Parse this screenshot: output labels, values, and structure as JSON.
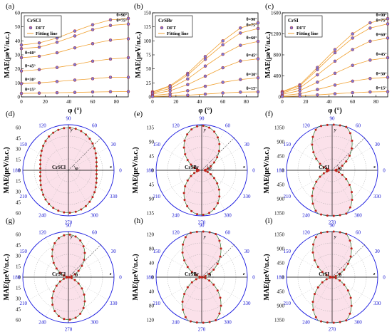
{
  "chart_data": [
    {
      "id": "a",
      "panel_label": "(a)",
      "type": "scatter",
      "material": "CrSCl",
      "xlabel": "φ (°)",
      "ylabel": "MAE(μeV/u.c.)",
      "xlim": [
        0,
        90
      ],
      "ylim": [
        0,
        60
      ],
      "xticks": [
        "0",
        "20",
        "40",
        "60",
        "80"
      ],
      "yticks": [
        "0",
        "10",
        "20",
        "30",
        "40",
        "50",
        "60"
      ],
      "legend": {
        "placement": "top-left",
        "entries": [
          "DFT",
          "Fitting line"
        ]
      },
      "x": [
        0,
        15,
        30,
        45,
        60,
        75,
        90
      ],
      "series": [
        {
          "name": "θ=90°",
          "values": [
            37,
            38.5,
            42,
            47,
            51.5,
            55,
            56
          ]
        },
        {
          "name": "θ=75°",
          "values": [
            34.5,
            35.5,
            39,
            43.5,
            48,
            51,
            52
          ]
        },
        {
          "name": "θ=60°",
          "values": [
            28,
            29,
            31.5,
            35,
            38,
            40.5,
            41.5
          ]
        },
        {
          "name": "θ=45°",
          "values": [
            18.5,
            19.5,
            21,
            23,
            25.5,
            27,
            28
          ]
        },
        {
          "name": "θ=30°",
          "values": [
            9.5,
            10,
            11,
            12,
            13,
            14,
            14
          ]
        },
        {
          "name": "θ=15°",
          "values": [
            2.5,
            2.7,
            3,
            3.2,
            3.5,
            3.7,
            3.8
          ]
        }
      ]
    },
    {
      "id": "b",
      "panel_label": "(b)",
      "type": "scatter",
      "material": "CrSBr",
      "xlabel": "φ (°)",
      "ylabel": "MAE(μeV/u.c.)",
      "xlim": [
        0,
        90
      ],
      "ylim": [
        0,
        150
      ],
      "xticks": [
        "0",
        "20",
        "40",
        "60",
        "80"
      ],
      "yticks": [
        "0",
        "25",
        "50",
        "75",
        "100",
        "125",
        "150"
      ],
      "legend": {
        "placement": "top-left",
        "entries": [
          "DFT",
          "Fitting line"
        ]
      },
      "x": [
        0,
        15,
        30,
        45,
        60,
        75,
        90
      ],
      "series": [
        {
          "name": "θ=90°",
          "values": [
            9,
            20,
            42,
            72,
            100,
            123,
            132
          ]
        },
        {
          "name": "θ=75°",
          "values": [
            8.5,
            18.5,
            39,
            67,
            93,
            114,
            122
          ]
        },
        {
          "name": "θ=60°",
          "values": [
            7,
            15,
            32,
            55,
            76,
            92,
            99
          ]
        },
        {
          "name": "θ=45°",
          "values": [
            5,
            11,
            22,
            37,
            52,
            64,
            68
          ]
        },
        {
          "name": "θ=30°",
          "values": [
            2.5,
            5.5,
            11,
            19,
            26,
            31,
            34
          ]
        },
        {
          "name": "θ=15°",
          "values": [
            0.7,
            1.5,
            3,
            5,
            7,
            8.5,
            9
          ]
        }
      ]
    },
    {
      "id": "c",
      "panel_label": "(c)",
      "type": "scatter",
      "material": "CrSI",
      "xlabel": "φ (°)",
      "ylabel": "MAE(μeV/u.c.)",
      "xlim": [
        0,
        90
      ],
      "ylim": [
        0,
        1600
      ],
      "xticks": [
        "0",
        "20",
        "40",
        "60",
        "80"
      ],
      "yticks": [
        "0",
        "400",
        "800",
        "1200",
        "1600"
      ],
      "legend": {
        "placement": "top-left",
        "entries": [
          "DFT",
          "Fitting line"
        ]
      },
      "x": [
        0,
        15,
        30,
        45,
        60,
        75,
        90
      ],
      "series": [
        {
          "name": "θ=90°",
          "values": [
            100,
            230,
            560,
            900,
            1200,
            1410,
            1490
          ]
        },
        {
          "name": "θ=75°",
          "values": [
            90,
            210,
            520,
            840,
            1120,
            1310,
            1390
          ]
        },
        {
          "name": "θ=60°",
          "values": [
            75,
            170,
            420,
            680,
            900,
            1060,
            1120
          ]
        },
        {
          "name": "θ=45°",
          "values": [
            50,
            120,
            280,
            450,
            600,
            700,
            745
          ]
        },
        {
          "name": "θ=30°",
          "values": [
            25,
            60,
            140,
            225,
            300,
            350,
            372
          ]
        },
        {
          "name": "θ=15°",
          "values": [
            7,
            16,
            38,
            60,
            80,
            94,
            100
          ]
        }
      ]
    },
    {
      "id": "d",
      "panel_label": "(d)",
      "type": "polar",
      "material": "CrSCl",
      "plane": "xy",
      "ylabel": "MAE(μeV/u.c.)",
      "rmax": 60,
      "radial_ticks": [
        "60",
        "45",
        "30",
        "15",
        "0",
        "15",
        "30",
        "45",
        "60"
      ],
      "angle_ticks": [
        "0",
        "30",
        "60",
        "90",
        "120",
        "150",
        "180",
        "210",
        "240",
        "270",
        "300",
        "330"
      ],
      "axis_labels": [
        "y",
        "x"
      ],
      "angle_label": "φ",
      "min_value": 37,
      "max_value": 56
    },
    {
      "id": "e",
      "panel_label": "(e)",
      "type": "polar",
      "material": "CrSBr",
      "plane": "xy",
      "ylabel": "MAE(μeV/u.c.)",
      "rmax": 135,
      "radial_ticks": [
        "135",
        "90",
        "45",
        "0",
        "45",
        "90",
        "135"
      ],
      "angle_ticks": [
        "0",
        "30",
        "60",
        "90",
        "120",
        "150",
        "180",
        "210",
        "240",
        "270",
        "300",
        "330"
      ],
      "axis_labels": [
        "y",
        "x"
      ],
      "angle_label": "φ",
      "min_value": 9,
      "max_value": 132
    },
    {
      "id": "f",
      "panel_label": "(f)",
      "type": "polar",
      "material": "CrSI",
      "plane": "xy",
      "ylabel": "MAE(μeV/u.c.)",
      "rmax": 1350,
      "radial_ticks": [
        "1350",
        "900",
        "450",
        "0",
        "450",
        "900",
        "1350"
      ],
      "angle_ticks": [
        "0",
        "30",
        "60",
        "90",
        "120",
        "150",
        "180",
        "210",
        "240",
        "270",
        "300",
        "330"
      ],
      "axis_labels": [
        "y",
        "x"
      ],
      "angle_label": "φ",
      "min_value": 100,
      "max_value": 1490
    },
    {
      "id": "g",
      "panel_label": "(g)",
      "type": "polar",
      "material": "CrSCl",
      "plane": "yz",
      "ylabel": "MAE(μeV/u.c.)",
      "rmax": 60,
      "radial_ticks": [
        "60",
        "45",
        "30",
        "15",
        "0",
        "15",
        "30",
        "45",
        "60"
      ],
      "angle_ticks": [
        "0",
        "30",
        "60",
        "90",
        "120",
        "150",
        "180",
        "210",
        "240",
        "270",
        "300",
        "330"
      ],
      "axis_labels": [
        "y",
        "z"
      ],
      "angle_label": "θ",
      "min_value": 0,
      "max_value": 56
    },
    {
      "id": "h",
      "panel_label": "(h)",
      "type": "polar",
      "material": "CrSBr",
      "plane": "yz",
      "ylabel": "MAE(μeV/u.c.)",
      "rmax": 120,
      "radial_ticks": [
        "120",
        "80",
        "40",
        "0",
        "40",
        "80",
        "120"
      ],
      "angle_ticks": [
        "0",
        "30",
        "60",
        "90",
        "120",
        "150",
        "180",
        "210",
        "240",
        "270",
        "300",
        "330"
      ],
      "axis_labels": [
        "y",
        "z"
      ],
      "angle_label": "θ",
      "min_value": 0,
      "max_value": 132
    },
    {
      "id": "i",
      "panel_label": "(i)",
      "type": "polar",
      "material": "CrSI",
      "plane": "yz",
      "ylabel": "MAE(μeV/u.c.)",
      "rmax": 1350,
      "radial_ticks": [
        "1350",
        "900",
        "450",
        "0",
        "450",
        "900",
        "1350"
      ],
      "angle_ticks": [
        "0",
        "30",
        "60",
        "90",
        "120",
        "150",
        "180",
        "210",
        "240",
        "270",
        "300",
        "330"
      ],
      "axis_labels": [
        "y",
        "z"
      ],
      "angle_label": "θ",
      "min_value": 0,
      "max_value": 1490
    }
  ],
  "colors": {
    "dft_marker": "#7c7cd6",
    "dft_marker_edge": "#b02020",
    "fit_line": "#f0a030",
    "polar_marker": "#c0201a",
    "polar_line": "#2e7d32",
    "polar_shade": "#f7c8d8",
    "polar_frame": "#1a1ae0"
  }
}
